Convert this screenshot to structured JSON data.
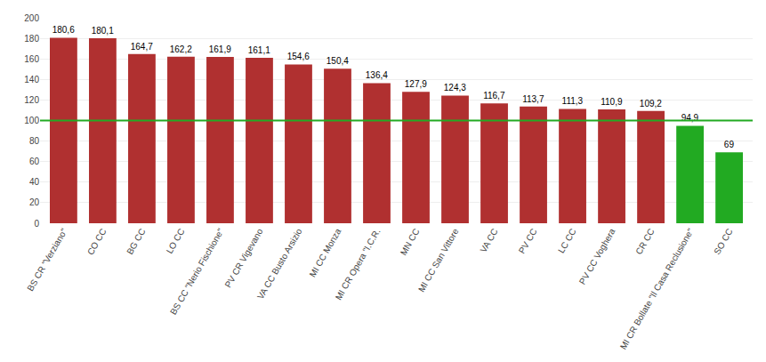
{
  "chart_data": {
    "type": "bar",
    "categories": [
      "BS CR \"Verziano\"",
      "CO CC",
      "BG CC",
      "LO CC",
      "BS CC \"Nerio Fischione\"",
      "PV CR Vigevano",
      "VA CC Busto Arsizio",
      "MI CC Monza",
      "MI CR Opera \"I.C.R.",
      "MN CC",
      "MI CC San Vittore",
      "VA CC",
      "PV CC",
      "LC CC",
      "PV CC Voghera",
      "CR CC",
      "MI CR Bollate \"Il Casa Reclusione\"",
      "SO CC"
    ],
    "values": [
      180.6,
      180.1,
      164.7,
      162.2,
      161.9,
      161.1,
      154.6,
      150.4,
      136.4,
      127.9,
      124.3,
      116.7,
      113.7,
      111.3,
      110.9,
      109.2,
      94.9,
      69.0
    ],
    "value_labels": [
      "180,6",
      "180,1",
      "164,7",
      "162,2",
      "161,9",
      "161,1",
      "154,6",
      "150,4",
      "136,4",
      "127,9",
      "124,3",
      "116,7",
      "113,7",
      "111,3",
      "110,9",
      "109,2",
      "94,9",
      "69"
    ],
    "colors": [
      "#b03030",
      "#b03030",
      "#b03030",
      "#b03030",
      "#b03030",
      "#b03030",
      "#b03030",
      "#b03030",
      "#b03030",
      "#b03030",
      "#b03030",
      "#b03030",
      "#b03030",
      "#b03030",
      "#b03030",
      "#b03030",
      "#22aa22",
      "#22aa22"
    ],
    "data_labels": true,
    "reference_line": 100,
    "reference_line_color": "#22aa22",
    "ylim": [
      0,
      200
    ],
    "yticks": [
      0,
      20,
      40,
      60,
      80,
      100,
      120,
      140,
      160,
      180,
      200
    ],
    "grid": true
  }
}
